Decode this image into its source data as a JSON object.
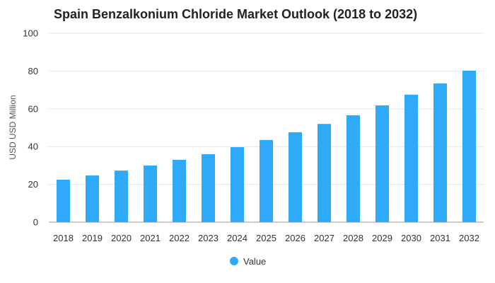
{
  "chart_data": {
    "type": "bar",
    "title": "Spain Benzalkonium Chloride Market Outlook (2018 to 2032)",
    "xlabel": "",
    "ylabel": "USD USD Million",
    "ylim": [
      0,
      100
    ],
    "yticks": [
      "0",
      "20",
      "40",
      "60",
      "80",
      "100"
    ],
    "categories": [
      "2018",
      "2019",
      "2020",
      "2021",
      "2022",
      "2023",
      "2024",
      "2025",
      "2026",
      "2027",
      "2028",
      "2029",
      "2030",
      "2031",
      "2032"
    ],
    "series": [
      {
        "name": "Value",
        "color": "#2eaaf8",
        "values": [
          22.5,
          24.7,
          27.3,
          30.0,
          33.0,
          36.0,
          39.7,
          43.5,
          47.6,
          52.0,
          56.6,
          61.8,
          67.5,
          73.4,
          80.2
        ]
      }
    ],
    "grid": true,
    "legend_position": "bottom-center"
  }
}
